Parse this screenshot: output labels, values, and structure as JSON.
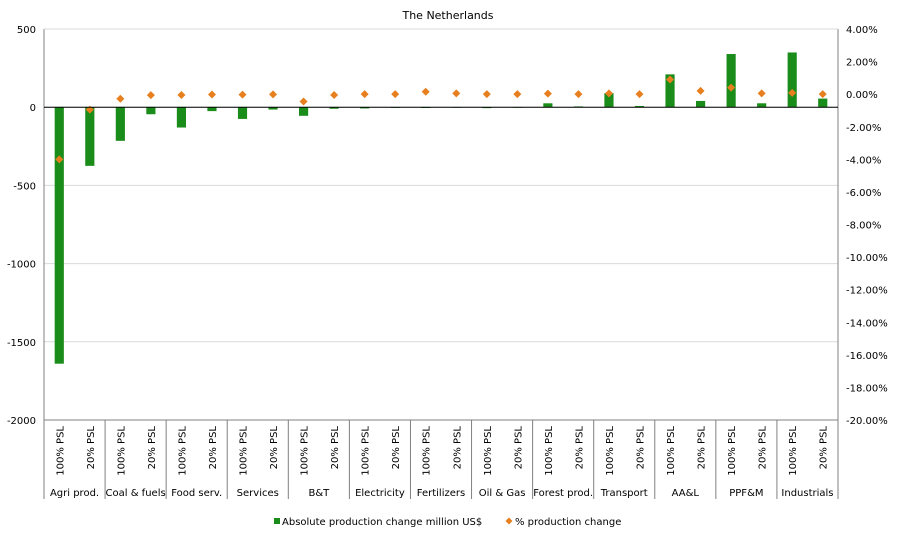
{
  "chart_data": {
    "type": "bar",
    "title": "The Netherlands",
    "groups": [
      "Agri prod.",
      "Coal & fuels",
      "Food serv.",
      "Services",
      "B&T",
      "Electricity",
      "Fertilizers",
      "Oil & Gas",
      "Forest prod.",
      "Transport",
      "AA&L",
      "PPF&M",
      "Industrials"
    ],
    "subcategories": [
      "100% PSL",
      "20% PSL"
    ],
    "categories": [
      "100% PSL",
      "20% PSL",
      "100% PSL",
      "20% PSL",
      "100% PSL",
      "20% PSL",
      "100% PSL",
      "20% PSL",
      "100% PSL",
      "20% PSL",
      "100% PSL",
      "20% PSL",
      "100% PSL",
      "20% PSL",
      "100% PSL",
      "20% PSL",
      "100% PSL",
      "20% PSL",
      "100% PSL",
      "20% PSL",
      "100% PSL",
      "20% PSL",
      "100% PSL",
      "20% PSL",
      "100% PSL",
      "20% PSL"
    ],
    "series": [
      {
        "name": "Absolute production change million US$",
        "kind": "bar",
        "axis": "left",
        "color": "#1a8c1a",
        "values": [
          -1640,
          -375,
          -215,
          -45,
          -130,
          -25,
          -75,
          -15,
          -55,
          -10,
          -8,
          -4,
          -5,
          -3,
          -6,
          -3,
          25,
          5,
          90,
          8,
          210,
          40,
          340,
          25,
          350,
          55
        ]
      },
      {
        "name": "% production change",
        "kind": "marker",
        "axis": "right",
        "color": "#e87f1e",
        "values": [
          -4.0,
          -0.95,
          -0.28,
          -0.06,
          -0.05,
          -0.02,
          -0.03,
          -0.01,
          -0.45,
          -0.05,
          0.0,
          0.0,
          0.15,
          0.05,
          0.0,
          0.0,
          0.03,
          0.0,
          0.05,
          0.0,
          0.9,
          0.2,
          0.4,
          0.05,
          0.08,
          0.0
        ]
      }
    ],
    "ylim": [
      -2000,
      500
    ],
    "yticks": [
      "500",
      "0",
      "-500",
      "-1000",
      "-1500",
      "-2000"
    ],
    "y2lim": [
      -20.0,
      4.0
    ],
    "y2ticks": [
      "4.00%",
      "2.00%",
      "0.00%",
      "-2.00%",
      "-4.00%",
      "-6.00%",
      "-8.00%",
      "-10.00%",
      "-12.00%",
      "-14.00%",
      "-16.00%",
      "-18.00%",
      "-20.00%"
    ],
    "grid": true,
    "legend_position": "bottom"
  }
}
